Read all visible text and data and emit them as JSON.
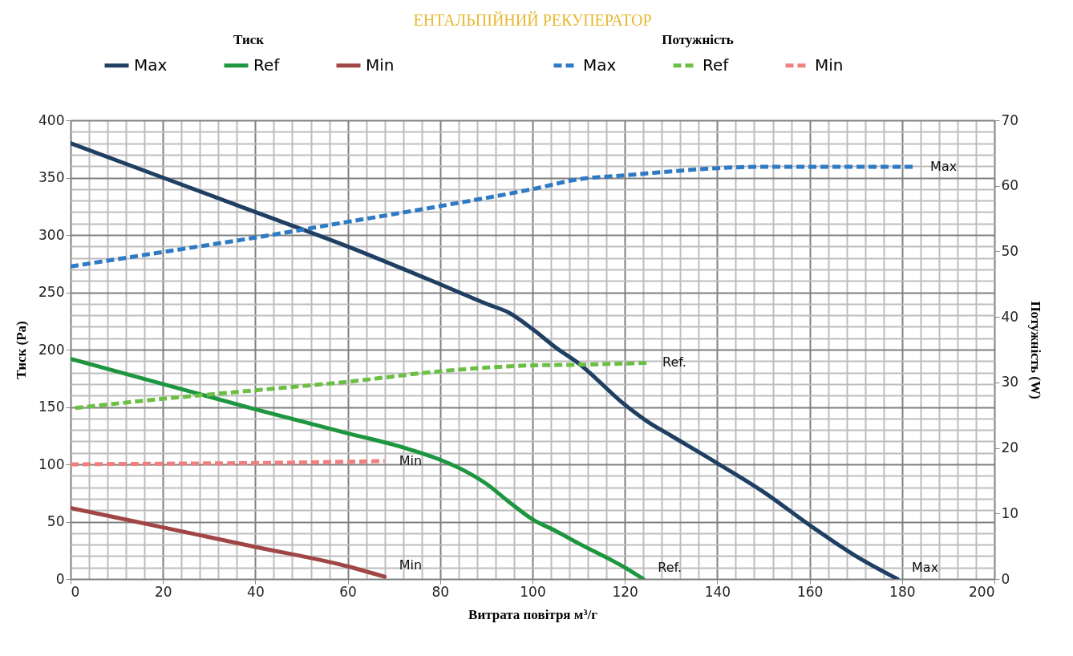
{
  "chart_data": {
    "type": "line",
    "title": "ЕНТАЛЬПІЙНИЙ РЕКУПЕРАТОР",
    "xlabel": "Витрата повітря м³/г",
    "ylabel": "Тиск (Pa)",
    "y2label": "Потужність (W)",
    "legend_title": [
      "Тиск",
      "Потужність"
    ],
    "legend": "top",
    "grid": true,
    "line_style": "solid",
    "xlim": [
      0,
      200
    ],
    "ylim": [
      0,
      400
    ],
    "y2lim": [
      0,
      70
    ],
    "xticks": [
      0,
      {
        "value": 4,
        "label": null
      },
      {
        "value": 8,
        "label": null
      },
      {
        "value": 12,
        "label": null
      },
      {
        "value": 16,
        "label": null
      },
      20,
      {
        "value": 24,
        "label": null
      },
      {
        "value": 28,
        "label": null
      },
      {
        "value": 32,
        "label": null
      },
      {
        "value": 36,
        "label": null
      },
      40,
      {
        "value": 44,
        "label": null
      },
      {
        "value": 48,
        "label": null
      },
      {
        "value": 52,
        "label": null
      },
      {
        "value": 56,
        "label": null
      },
      60,
      {
        "value": 64,
        "label": null
      },
      {
        "value": 68,
        "label": null
      },
      {
        "value": 72,
        "label": null
      },
      {
        "value": 76,
        "label": null
      },
      80,
      {
        "value": 84,
        "label": null
      },
      {
        "value": 88,
        "label": null
      },
      {
        "value": 92,
        "label": null
      },
      {
        "value": 96,
        "label": null
      },
      100,
      {
        "value": 104,
        "label": null
      },
      {
        "value": 108,
        "label": null
      },
      {
        "value": 112,
        "label": null
      },
      {
        "value": 116,
        "label": null
      },
      120,
      {
        "value": 124,
        "label": null
      },
      {
        "value": 128,
        "label": null
      },
      {
        "value": 132,
        "label": null
      },
      {
        "value": 136,
        "label": null
      },
      140,
      {
        "value": 144,
        "label": null
      },
      {
        "value": 148,
        "label": null
      },
      {
        "value": 152,
        "label": null
      },
      {
        "value": 156,
        "label": null
      },
      160,
      {
        "value": 164,
        "label": null
      },
      {
        "value": 168,
        "label": null
      },
      {
        "value": 172,
        "label": null
      },
      {
        "value": 176,
        "label": null
      },
      180,
      {
        "value": 184,
        "label": null
      },
      {
        "value": 188,
        "label": null
      },
      {
        "value": 192,
        "label": null
      },
      {
        "value": 196,
        "label": null
      },
      200
    ],
    "yticks": [
      0,
      {
        "value": 10,
        "label": null
      },
      {
        "value": 20,
        "label": null
      },
      {
        "value": 30,
        "label": null
      },
      {
        "value": 40,
        "label": null
      },
      50,
      {
        "value": 60,
        "label": null
      },
      {
        "value": 70,
        "label": null
      },
      {
        "value": 80,
        "label": null
      },
      {
        "value": 90,
        "label": null
      },
      100,
      {
        "value": 110,
        "label": null
      },
      {
        "value": 120,
        "label": null
      },
      {
        "value": 130,
        "label": null
      },
      {
        "value": 140,
        "label": null
      },
      150,
      {
        "value": 160,
        "label": null
      },
      {
        "value": 170,
        "label": null
      },
      {
        "value": 180,
        "label": null
      },
      {
        "value": 190,
        "label": null
      },
      200,
      {
        "value": 210,
        "label": null
      },
      {
        "value": 220,
        "label": null
      },
      {
        "value": 230,
        "label": null
      },
      {
        "value": 240,
        "label": null
      },
      250,
      {
        "value": 260,
        "label": null
      },
      {
        "value": 270,
        "label": null
      },
      {
        "value": 280,
        "label": null
      },
      {
        "value": 290,
        "label": null
      },
      300,
      {
        "value": 310,
        "label": null
      },
      {
        "value": 320,
        "label": null
      },
      {
        "value": 330,
        "label": null
      },
      {
        "value": 340,
        "label": null
      },
      350,
      {
        "value": 360,
        "label": null
      },
      {
        "value": 370,
        "label": null
      },
      {
        "value": 380,
        "label": null
      },
      {
        "value": 390,
        "label": null
      },
      400
    ],
    "y2ticks": [
      0,
      10,
      20,
      30,
      40,
      50,
      60,
      70
    ],
    "series": [
      {
        "name": "Max",
        "color": "#1f3f63",
        "x": [
          0,
          20,
          40,
          60,
          80,
          90,
          95,
          100,
          105,
          110,
          120,
          125,
          130,
          140,
          150,
          160,
          170,
          179
        ],
        "values": [
          380,
          350,
          320,
          290,
          257,
          240,
          232,
          218,
          202,
          188,
          152,
          137,
          125,
          101,
          76,
          47,
          20,
          0
        ]
      },
      {
        "name": "Ref",
        "color": "#1e9640",
        "x": [
          0,
          20,
          40,
          60,
          70,
          80,
          85,
          90,
          95,
          100,
          105,
          110,
          120,
          124
        ],
        "values": [
          192,
          170,
          148,
          127,
          117,
          104,
          95,
          83,
          67,
          52,
          42,
          31,
          10,
          0
        ]
      },
      {
        "name": "Min",
        "color": "#a04646",
        "x": [
          0,
          20,
          40,
          60,
          68
        ],
        "values": [
          62,
          45,
          28,
          11,
          2
        ]
      },
      {
        "name": "Max",
        "color": "#2e7ac4",
        "axis": "y2",
        "line_style": "dashed",
        "x": [
          0,
          20,
          40,
          60,
          80,
          100,
          110,
          120,
          130,
          140,
          150,
          160,
          170,
          183
        ],
        "values": [
          47.7,
          49.9,
          52.1,
          54.5,
          56.9,
          59.5,
          61,
          61.6,
          62.2,
          62.7,
          62.9,
          62.9,
          62.9,
          62.9
        ]
      },
      {
        "name": "Ref",
        "color": "#6cbf45",
        "axis": "y2",
        "line_style": "dashed",
        "x": [
          1,
          20,
          40,
          60,
          80,
          100,
          110,
          125
        ],
        "values": [
          26.1,
          27.5,
          28.8,
          30.1,
          31.7,
          32.6,
          32.7,
          33.0
        ]
      },
      {
        "name": "Min",
        "color": "#f08080",
        "axis": "y2",
        "line_style": "dashed",
        "x": [
          0,
          20,
          40,
          60,
          68
        ],
        "values": [
          17.5,
          17.6,
          17.7,
          17.9,
          18.0
        ]
      }
    ],
    "annotations": [
      "Max",
      "Ref.",
      "Min",
      "Max",
      "Ref.",
      "Min"
    ]
  }
}
